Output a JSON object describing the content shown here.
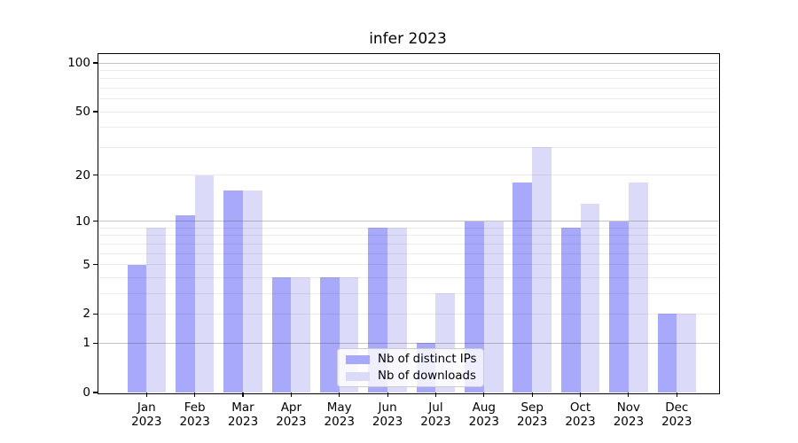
{
  "chart_data": {
    "type": "bar",
    "title": "infer 2023",
    "categories": [
      "Jan",
      "Feb",
      "Mar",
      "Apr",
      "May",
      "Jun",
      "Jul",
      "Aug",
      "Sep",
      "Oct",
      "Nov",
      "Dec"
    ],
    "category_year": "2023",
    "series": [
      {
        "name": "Nb of distinct IPs",
        "color": "#a9a9fb",
        "values": [
          5,
          11,
          16,
          4,
          4,
          9,
          1,
          10,
          18,
          9,
          10,
          2
        ]
      },
      {
        "name": "Nb of downloads",
        "color": "#dbdbf9",
        "values": [
          9,
          20,
          16,
          4,
          4,
          9,
          3,
          10,
          30,
          13,
          18,
          2
        ]
      }
    ],
    "yscale": "log10(1+v)",
    "ylim": [
      0,
      114
    ],
    "y_ticks": [
      100,
      50,
      20,
      10,
      5,
      2,
      1,
      0
    ],
    "grid": {
      "major_lines": [
        1,
        10,
        100
      ],
      "minor_lines": [
        2,
        3,
        4,
        5,
        6,
        7,
        8,
        9,
        20,
        30,
        40,
        50,
        60,
        70,
        80,
        90
      ],
      "visible": true
    },
    "legend": {
      "position": "lower center",
      "entries": [
        "Nb of distinct IPs",
        "Nb of downloads"
      ]
    },
    "colors": {
      "axis": "#000000",
      "grid_major": "#c2c2c2",
      "grid_minor": "#ececec",
      "background": "#ffffff"
    }
  }
}
